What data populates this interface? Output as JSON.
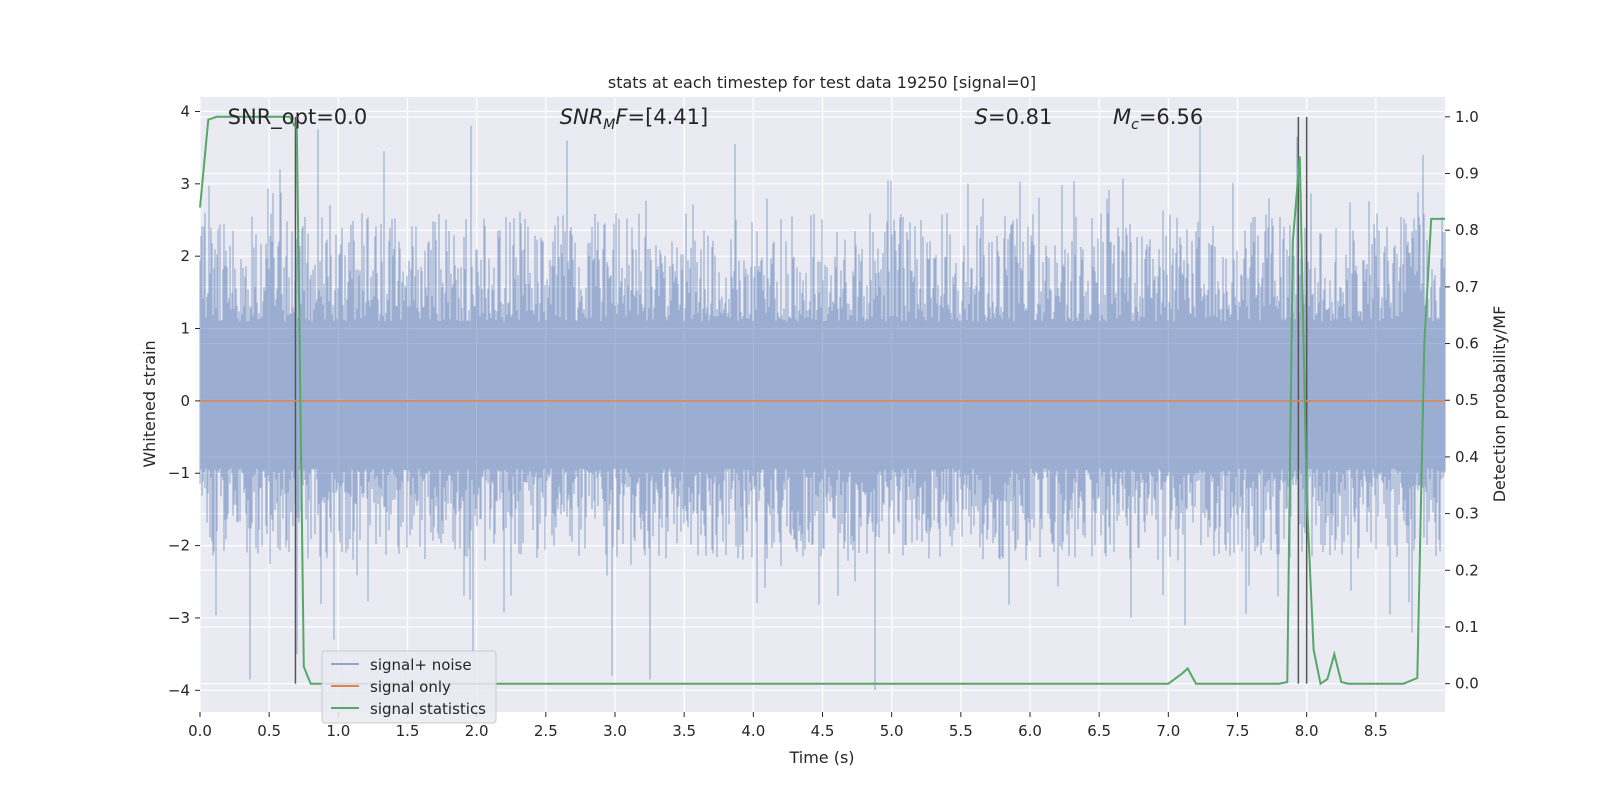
{
  "chart_data": {
    "type": "line",
    "title": "stats at each timestep for test data 19250 [signal=0]",
    "xlabel": "Time (s)",
    "ylabel_left": "Whitened strain",
    "ylabel_right": "Detection probability/MF",
    "xlim": [
      0.0,
      9.0
    ],
    "ylim_left": [
      -4.3,
      4.2
    ],
    "ylim_right": [
      -0.05,
      1.035
    ],
    "x_ticks": [
      0.0,
      0.5,
      1.0,
      1.5,
      2.0,
      2.5,
      3.0,
      3.5,
      4.0,
      4.5,
      5.0,
      5.5,
      6.0,
      6.5,
      7.0,
      7.5,
      8.0,
      8.5
    ],
    "x_tick_labels": [
      "0.0",
      "0.5",
      "1.0",
      "1.5",
      "2.0",
      "2.5",
      "3.0",
      "3.5",
      "4.0",
      "4.5",
      "5.0",
      "5.5",
      "6.0",
      "6.5",
      "7.0",
      "7.5",
      "8.0",
      "8.5"
    ],
    "y_left_ticks": [
      -4,
      -3,
      -2,
      -1,
      0,
      1,
      2,
      3,
      4
    ],
    "y_left_tick_labels": [
      "−4",
      "−3",
      "−2",
      "−1",
      "0",
      "1",
      "2",
      "3",
      "4"
    ],
    "y_right_ticks": [
      0.0,
      0.1,
      0.2,
      0.3,
      0.4,
      0.5,
      0.6,
      0.7,
      0.8,
      0.9,
      1.0
    ],
    "y_right_tick_labels": [
      "0.0",
      "0.1",
      "0.2",
      "0.3",
      "0.4",
      "0.5",
      "0.6",
      "0.7",
      "0.8",
      "0.9",
      "1.0"
    ],
    "grid": true,
    "legend_placement": "lower-left",
    "annotations": [
      {
        "text": "SNR_opt=0.0",
        "x": 0.2
      },
      {
        "text": "SNR_MF=[4.41]",
        "x": 2.6
      },
      {
        "text": "S=0.81",
        "x": 5.6
      },
      {
        "text": "M_c=6.56",
        "x": 6.6
      }
    ],
    "series": [
      {
        "name": "signal+ noise",
        "color": "#4c72b0",
        "kind": "noise",
        "envelope": {
          "typical_min": -1.7,
          "typical_max": 2.0,
          "extreme_min": -3.9,
          "extreme_max": 3.85
        },
        "spikes": [
          [
            0.36,
            -3.85
          ],
          [
            0.58,
            3.2
          ],
          [
            0.7,
            -3.5
          ],
          [
            0.85,
            3.75
          ],
          [
            0.97,
            -3.3
          ],
          [
            1.33,
            3.45
          ],
          [
            1.96,
            3.8
          ],
          [
            1.97,
            -3.5
          ],
          [
            2.65,
            3.6
          ],
          [
            2.98,
            -3.8
          ],
          [
            3.25,
            -3.85
          ],
          [
            3.87,
            3.55
          ],
          [
            4.88,
            -4.0
          ],
          [
            5.55,
            3.0
          ],
          [
            7.12,
            -3.1
          ],
          [
            7.23,
            3.8
          ],
          [
            7.93,
            3.65
          ],
          [
            8.76,
            -3.2
          ],
          [
            8.84,
            3.4
          ]
        ]
      },
      {
        "name": "signal only",
        "color": "#dd8452",
        "kind": "flat",
        "value": 0.0
      },
      {
        "name": "signal statistics",
        "color": "#55a868",
        "kind": "prob",
        "x": [
          0.0,
          0.06,
          0.12,
          0.2,
          0.3,
          0.4,
          0.5,
          0.6,
          0.65,
          0.68,
          0.7,
          0.75,
          0.8,
          0.9,
          1.5,
          3.0,
          5.0,
          6.0,
          7.0,
          7.1,
          7.14,
          7.2,
          7.3,
          7.5,
          7.8,
          7.86,
          7.9,
          7.95,
          8.0,
          8.05,
          8.1,
          8.15,
          8.2,
          8.25,
          8.3,
          8.35,
          8.5,
          8.7,
          8.8,
          8.85,
          8.9,
          9.0
        ],
        "y": [
          0.84,
          0.995,
          1.0,
          1.0,
          1.0,
          1.0,
          1.0,
          1.0,
          1.0,
          0.985,
          0.98,
          0.03,
          0.0,
          0.0,
          0.0,
          0.0,
          0.0,
          0.0,
          0.0,
          0.018,
          0.027,
          0.0,
          0.0,
          0.0,
          0.0,
          0.003,
          0.78,
          0.93,
          0.33,
          0.06,
          0.0,
          0.008,
          0.052,
          0.003,
          0.0,
          0.0,
          0.0,
          0.0,
          0.01,
          0.6,
          0.82,
          0.82
        ]
      }
    ],
    "vertical_markers": [
      0.69,
      7.94,
      8.0
    ]
  }
}
